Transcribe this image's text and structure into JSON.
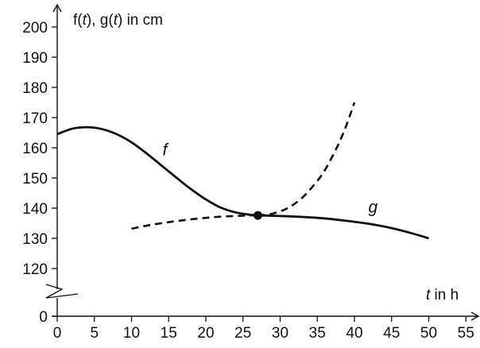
{
  "chart_data": {
    "type": "line",
    "xlabel": "t in h",
    "ylabel": "f(t), g(t) in cm",
    "ylabel_parts": [
      {
        "text": "f(",
        "italic": false
      },
      {
        "text": "t",
        "italic": true
      },
      {
        "text": "), ",
        "italic": false
      },
      {
        "text": "g(",
        "italic": false
      },
      {
        "text": "t",
        "italic": true
      },
      {
        "text": ") in cm",
        "italic": false
      }
    ],
    "xlabel_parts": [
      {
        "text": "t",
        "italic": true
      },
      {
        "text": " in h",
        "italic": false
      }
    ],
    "x_ticks": [
      0,
      5,
      10,
      15,
      20,
      25,
      30,
      35,
      40,
      45,
      50,
      55
    ],
    "y_ticks": [
      0,
      120,
      130,
      140,
      150,
      160,
      170,
      180,
      190,
      200
    ],
    "y_axis_break": {
      "between": [
        0,
        120
      ]
    },
    "series": [
      {
        "name": "f",
        "style": "solid",
        "x": [
          0,
          2,
          4,
          6,
          8,
          10,
          12,
          14,
          16,
          18,
          20,
          22,
          24,
          26,
          27
        ],
        "y": [
          164.5,
          166.3,
          166.8,
          166.2,
          164.5,
          161.8,
          158.2,
          154.2,
          150.2,
          146.3,
          142.9,
          140.2,
          138.6,
          137.8,
          137.6
        ]
      },
      {
        "name": "g",
        "style": "solid",
        "x": [
          27,
          30,
          33,
          36,
          39,
          42,
          45,
          48,
          50
        ],
        "y": [
          137.6,
          137.4,
          137.1,
          136.6,
          135.8,
          134.8,
          133.4,
          131.5,
          130.0
        ]
      },
      {
        "name": "",
        "style": "dashed",
        "x": [
          10,
          12,
          14,
          16,
          18,
          20,
          22,
          24,
          26,
          27
        ],
        "y": [
          133.2,
          134.2,
          135.0,
          135.7,
          136.3,
          136.8,
          137.2,
          137.4,
          137.6,
          137.6
        ]
      },
      {
        "name": "",
        "style": "dashed",
        "x": [
          27,
          29,
          31,
          33,
          35,
          36,
          37,
          38,
          39,
          40
        ],
        "y": [
          137.6,
          138.2,
          140.0,
          143.5,
          149.0,
          152.5,
          157.0,
          162.0,
          168.0,
          175.0
        ]
      }
    ],
    "points": [
      {
        "x": 27,
        "y": 137.6,
        "style": "filled"
      }
    ],
    "curve_labels": [
      {
        "text": "f",
        "x": 14.5,
        "y": 157.5
      },
      {
        "text": "g",
        "x": 42.5,
        "y": 138.5
      }
    ]
  }
}
